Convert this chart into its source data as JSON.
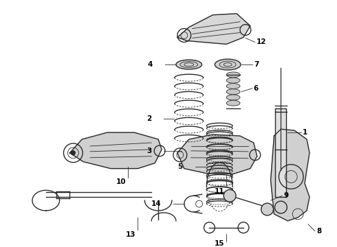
{
  "background_color": "#ffffff",
  "line_color": "#2a2a2a",
  "figsize": [
    4.9,
    3.6
  ],
  "dpi": 100
}
